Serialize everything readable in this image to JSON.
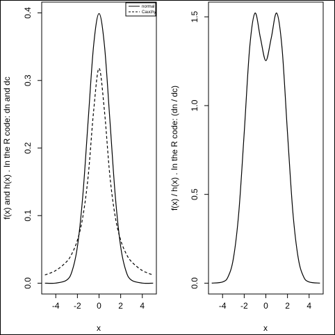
{
  "chart_data": [
    {
      "type": "line",
      "xlabel": "x",
      "ylabel": "f(x) and h(x)    . In the R code: dn and dc",
      "xlim": [
        -5.3,
        5.3
      ],
      "ylim": [
        -0.016,
        0.416
      ],
      "xticks": [
        -4,
        -2,
        0,
        2,
        4
      ],
      "xtick_labels": [
        "-4",
        "-2",
        "0",
        "2",
        "4"
      ],
      "yticks": [
        0.0,
        0.1,
        0.2,
        0.3,
        0.4
      ],
      "ytick_labels": [
        "0.0",
        "0.1",
        "0.2",
        "0.3",
        "0.4"
      ],
      "legend": {
        "placement": "top-right",
        "entries": [
          "normal",
          "Cauchy"
        ]
      },
      "series": [
        {
          "name": "normal",
          "style": "solid",
          "x": [
            -5,
            -4,
            -3,
            -2.5,
            -2,
            -1.5,
            -1,
            -0.5,
            0,
            0.5,
            1,
            1.5,
            2,
            2.5,
            3,
            4,
            5
          ],
          "values": [
            1.5e-06,
            0.000134,
            0.00443,
            0.0175,
            0.054,
            0.1295,
            0.242,
            0.352,
            0.399,
            0.352,
            0.242,
            0.1295,
            0.054,
            0.0175,
            0.00443,
            0.000134,
            1.5e-06
          ]
        },
        {
          "name": "Cauchy",
          "style": "dashed",
          "x": [
            -5,
            -4,
            -3,
            -2.5,
            -2,
            -1.5,
            -1,
            -0.5,
            0,
            0.5,
            1,
            1.5,
            2,
            2.5,
            3,
            4,
            5
          ],
          "values": [
            0.0122,
            0.0187,
            0.0318,
            0.0439,
            0.0637,
            0.098,
            0.159,
            0.255,
            0.318,
            0.255,
            0.159,
            0.098,
            0.0637,
            0.0439,
            0.0318,
            0.0187,
            0.0122
          ]
        }
      ]
    },
    {
      "type": "line",
      "xlabel": "x",
      "ylabel": "f(x) / h(x)    . In the R code: (dn / dc)",
      "xlim": [
        -5.3,
        5.3
      ],
      "ylim": [
        -0.061,
        1.583
      ],
      "xticks": [
        -4,
        -2,
        0,
        2,
        4
      ],
      "xtick_labels": [
        "-4",
        "-2",
        "0",
        "2",
        "4"
      ],
      "yticks": [
        0.0,
        0.5,
        1.0,
        1.5
      ],
      "ytick_labels": [
        "0.0",
        "0.5",
        "1.0",
        "1.5"
      ],
      "series": [
        {
          "style": "solid",
          "x": [
            -5,
            -4,
            -3.5,
            -3,
            -2.5,
            -2,
            -1.5,
            -1,
            -0.5,
            0,
            0.5,
            1,
            1.5,
            2,
            2.5,
            3,
            3.5,
            4,
            5
          ],
          "values": [
            0.0001,
            0.007,
            0.035,
            0.139,
            0.398,
            0.847,
            1.322,
            1.521,
            1.381,
            1.253,
            1.381,
            1.521,
            1.322,
            0.847,
            0.398,
            0.139,
            0.035,
            0.007,
            0.0001
          ]
        }
      ]
    }
  ]
}
